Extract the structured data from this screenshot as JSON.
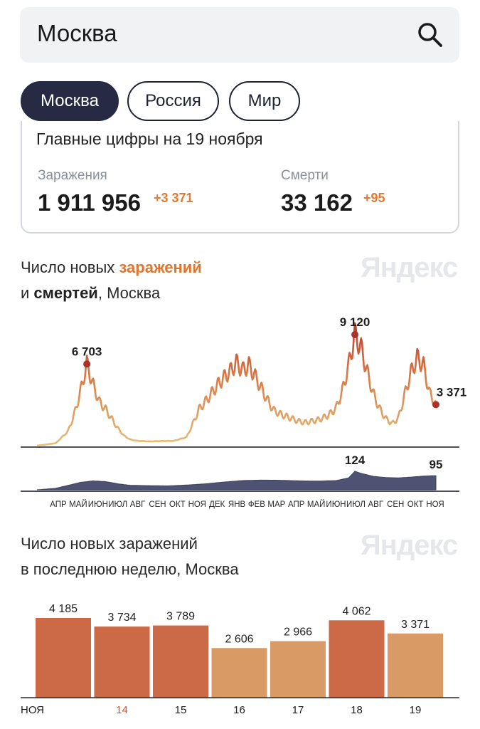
{
  "search": {
    "query": "Москва"
  },
  "tabs": [
    {
      "label": "Москва",
      "active": true
    },
    {
      "label": "Россия",
      "active": false
    },
    {
      "label": "Мир",
      "active": false
    }
  ],
  "summary": {
    "title": "Главные цифры на 19 ноября",
    "infections": {
      "label": "Заражения",
      "value": "1 911 956",
      "delta": "+3 371"
    },
    "deaths": {
      "label": "Смерти",
      "value": "33 162",
      "delta": "+95"
    }
  },
  "brand": "Яндекс",
  "colors": {
    "accent": "#e0762e",
    "bar_dark": "#cc6a48",
    "bar_light": "#d99a66",
    "deaths_fill": "#4e5373"
  },
  "chart1": {
    "title_part1": "Число новых ",
    "title_accent": "заражений",
    "title_part2": "и ",
    "title_bold": "смертей",
    "title_part3": ", Москва"
  },
  "chart2": {
    "title_line1": "Число новых заражений",
    "title_line2": "в последнюю неделю, Москва"
  },
  "chart_data": [
    {
      "type": "line",
      "series": [
        {
          "name": "Заражения",
          "points": [
            [
              0,
              0
            ],
            [
              3,
              200
            ],
            [
              5,
              1200
            ],
            [
              6,
              2600
            ],
            [
              7,
              4500
            ],
            [
              8,
              6703
            ],
            [
              9,
              5000
            ],
            [
              10,
              3600
            ],
            [
              11,
              3000
            ],
            [
              12,
              2200
            ],
            [
              13,
              1400
            ],
            [
              14,
              800
            ],
            [
              15,
              500
            ],
            [
              16,
              400
            ],
            [
              18,
              350
            ],
            [
              20,
              380
            ],
            [
              22,
              400
            ],
            [
              24,
              700
            ],
            [
              25,
              1800
            ],
            [
              26,
              3000
            ],
            [
              27,
              3600
            ],
            [
              28,
              4300
            ],
            [
              29,
              5000
            ],
            [
              30,
              5600
            ],
            [
              31,
              6100
            ],
            [
              32,
              6800
            ],
            [
              33,
              6200
            ],
            [
              34,
              6600
            ],
            [
              35,
              5700
            ],
            [
              36,
              4700
            ],
            [
              37,
              3700
            ],
            [
              38,
              2900
            ],
            [
              39,
              2600
            ],
            [
              40,
              2400
            ],
            [
              41,
              2200
            ],
            [
              42,
              2000
            ],
            [
              43,
              1900
            ],
            [
              44,
              2000
            ],
            [
              45,
              2100
            ],
            [
              46,
              2300
            ],
            [
              47,
              2600
            ],
            [
              48,
              3100
            ],
            [
              49,
              4500
            ],
            [
              50,
              6600
            ],
            [
              51,
              9120
            ],
            [
              52,
              8000
            ],
            [
              53,
              6000
            ],
            [
              54,
              4200
            ],
            [
              55,
              3000
            ],
            [
              56,
              2200
            ],
            [
              57,
              1800
            ],
            [
              58,
              2300
            ],
            [
              59,
              4200
            ],
            [
              60,
              6000
            ],
            [
              61,
              7200
            ],
            [
              62,
              6600
            ],
            [
              63,
              4300
            ],
            [
              64,
              3371
            ]
          ]
        },
        {
          "name": "Смерти",
          "points": [
            [
              0,
              0
            ],
            [
              3,
              10
            ],
            [
              5,
              30
            ],
            [
              7,
              50
            ],
            [
              9,
              60
            ],
            [
              11,
              55
            ],
            [
              13,
              40
            ],
            [
              15,
              30
            ],
            [
              18,
              28
            ],
            [
              21,
              26
            ],
            [
              24,
              32
            ],
            [
              27,
              40
            ],
            [
              30,
              52
            ],
            [
              33,
              62
            ],
            [
              36,
              65
            ],
            [
              39,
              64
            ],
            [
              42,
              60
            ],
            [
              45,
              58
            ],
            [
              48,
              62
            ],
            [
              50,
              80
            ],
            [
              51,
              124
            ],
            [
              52,
              110
            ],
            [
              54,
              90
            ],
            [
              56,
              82
            ],
            [
              58,
              80
            ],
            [
              60,
              85
            ],
            [
              62,
              92
            ],
            [
              64,
              95
            ]
          ]
        }
      ],
      "x_tick_labels": [
        "АПР",
        "МАЙ",
        "ИЮН",
        "ИЮЛ",
        "АВГ",
        "СЕН",
        "ОКТ",
        "НОЯ",
        "ДЕК",
        "ЯНВ",
        "ФЕВ",
        "МАР",
        "АПР",
        "МАЙ",
        "ИЮН",
        "ИЮЛ",
        "АВГ",
        "СЕН",
        "ОКТ",
        "НОЯ"
      ],
      "annotations": [
        {
          "series": "Заражения",
          "x": 8,
          "value": 6703,
          "label": "6 703"
        },
        {
          "series": "Заражения",
          "x": 51,
          "value": 9120,
          "label": "9 120"
        },
        {
          "series": "Заражения",
          "x": 64,
          "value": 3371,
          "label": "3 371"
        },
        {
          "series": "Смерти",
          "x": 51,
          "value": 124,
          "label": "124"
        },
        {
          "series": "Смерти",
          "x": 64,
          "value": 95,
          "label": "95"
        }
      ]
    },
    {
      "type": "bar",
      "categories": [
        "13",
        "14",
        "15",
        "16",
        "17",
        "18",
        "19"
      ],
      "tick_labels": [
        "НОЯ",
        "14",
        "15",
        "16",
        "17",
        "18",
        "19"
      ],
      "highlight_tick": "14",
      "values": [
        4185,
        3734,
        3789,
        2606,
        2966,
        4062,
        3371
      ],
      "value_labels": [
        "4 185",
        "3 734",
        "3 789",
        "2 606",
        "2 966",
        "4 062",
        "3 371"
      ],
      "weekend": [
        false,
        false,
        false,
        true,
        true,
        false,
        true
      ]
    }
  ]
}
